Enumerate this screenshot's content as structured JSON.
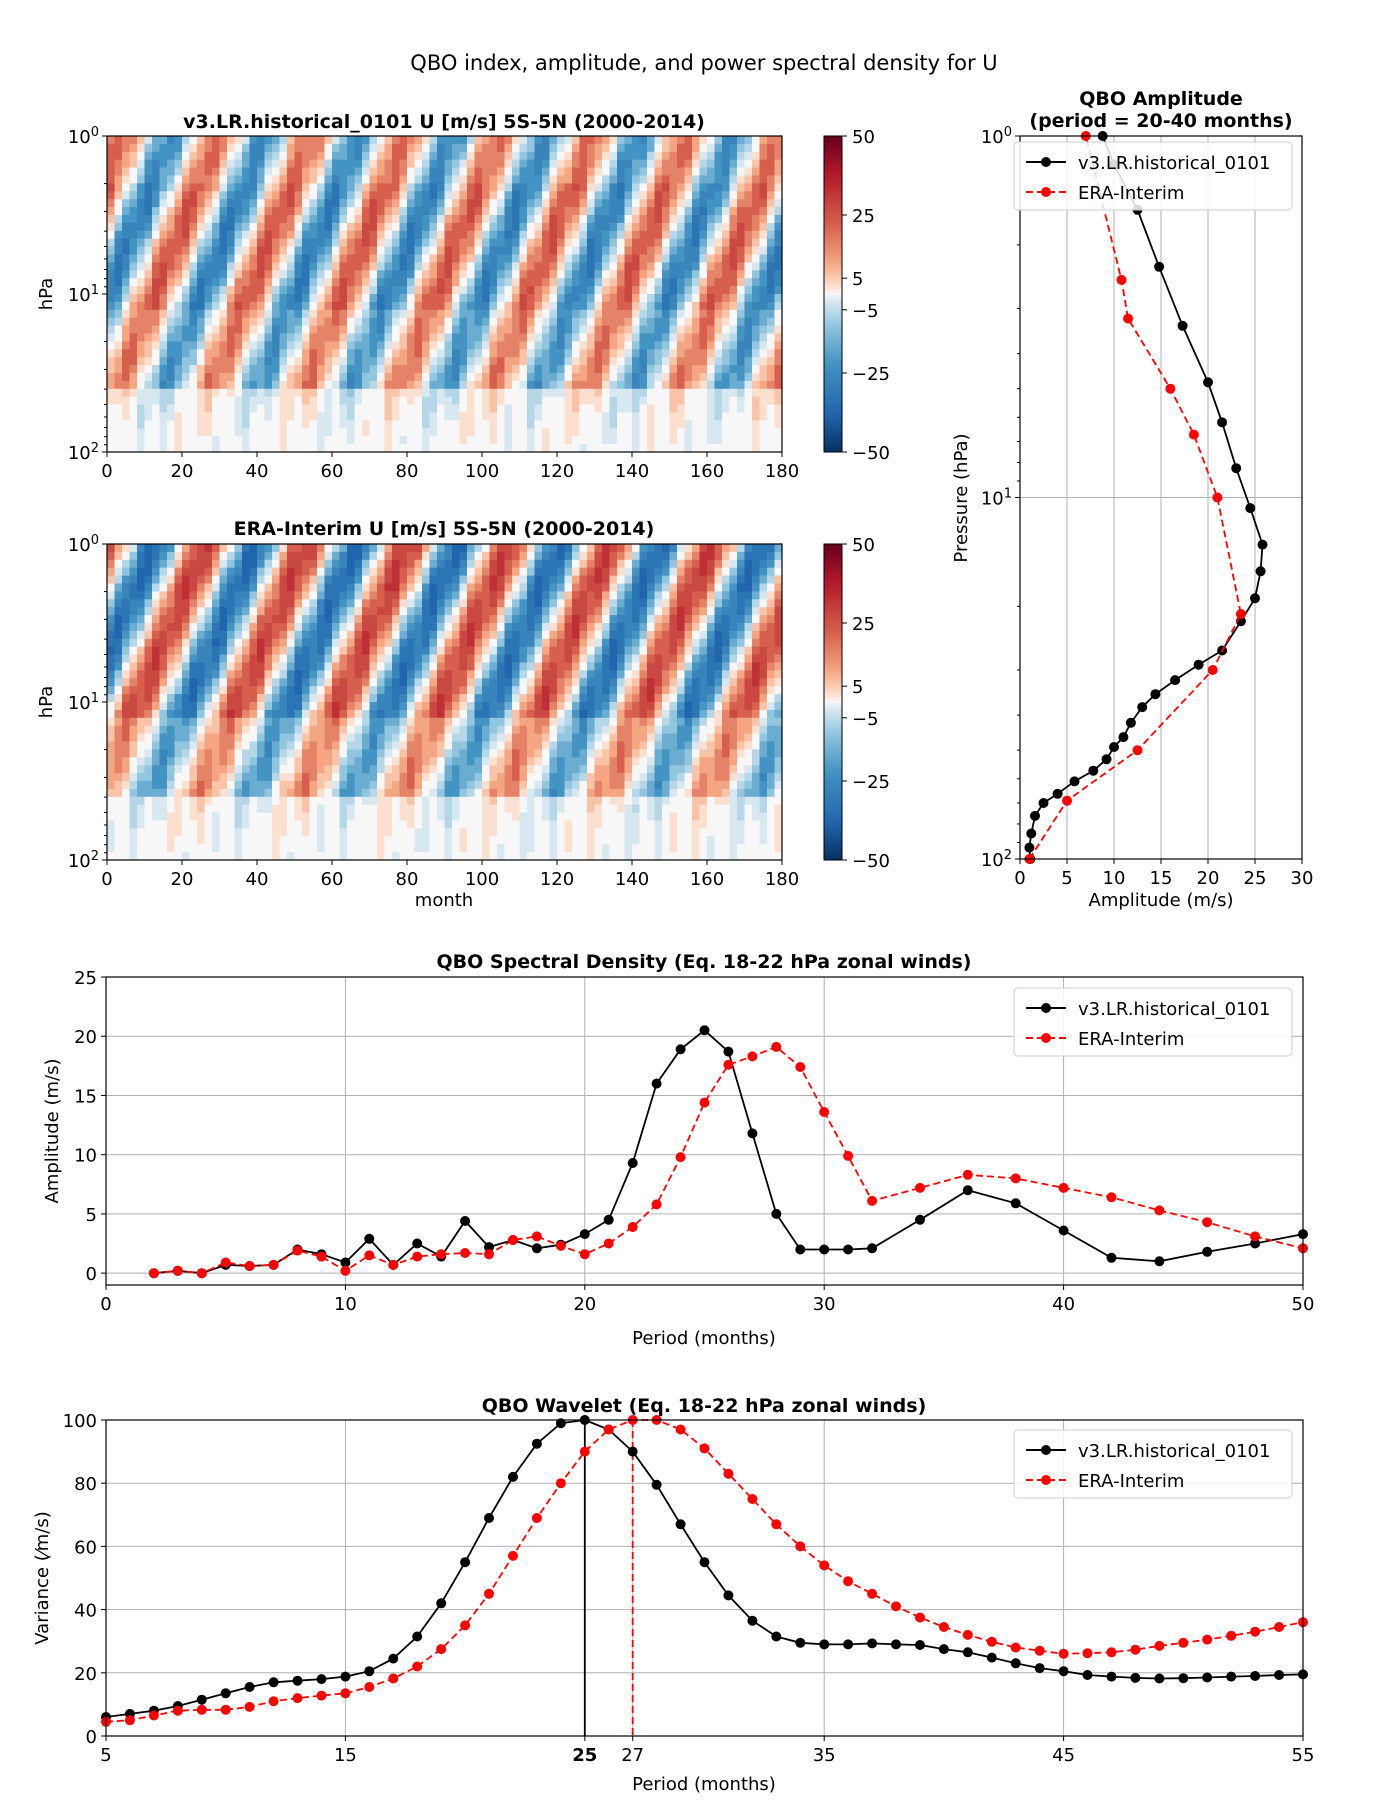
{
  "figure_title": "QBO index, amplitude, and power spectral density for U",
  "colorbar_ticks": [
    "50",
    "25",
    "5",
    "−5",
    "−25",
    "−50"
  ],
  "colorbar_tick_values": [
    50,
    25,
    5,
    -5,
    -25,
    -50
  ],
  "colors": {
    "model": "#000000",
    "reference": "#ff0000",
    "grid": "#b0b0b0",
    "positive": "#d6604d",
    "negative": "#2166ac"
  },
  "chart_data": [
    {
      "type": "heatmap",
      "id": "model-contour",
      "title": "v3.LR.historical_0101 U [m/s] 5S-5N (2000-2014)",
      "ylabel": "hPa",
      "xlabel": "",
      "xlim": [
        0,
        180
      ],
      "x_ticks": [
        "0",
        "20",
        "40",
        "60",
        "80",
        "100",
        "120",
        "140",
        "160",
        "180"
      ],
      "y_ticks": [
        "10^0",
        "10^1",
        "10^2"
      ],
      "ylim_hPa": [
        100,
        1
      ],
      "y_scale": "log",
      "colorbar_range": [
        -50,
        50
      ],
      "colormap": "RdBu_r",
      "qbo_period_months": 25,
      "descent": "downward-propagating alternating easterly and westerly wind regimes"
    },
    {
      "type": "heatmap",
      "id": "reference-contour",
      "title": "ERA-Interim U [m/s] 5S-5N (2000-2014)",
      "ylabel": "hPa",
      "xlabel": "month",
      "xlim": [
        0,
        180
      ],
      "x_ticks": [
        "0",
        "20",
        "40",
        "60",
        "80",
        "100",
        "120",
        "140",
        "160",
        "180"
      ],
      "y_ticks": [
        "10^0",
        "10^1",
        "10^2"
      ],
      "ylim_hPa": [
        100,
        1
      ],
      "y_scale": "log",
      "colorbar_range": [
        -50,
        50
      ],
      "colormap": "RdBu_r",
      "qbo_period_months": 27,
      "descent": "downward-propagating alternating easterly and westerly wind regimes"
    },
    {
      "type": "line",
      "id": "amplitude",
      "title_line1": "QBO Amplitude",
      "title_line2": "(period = 20-40 months)",
      "xlabel": "Amplitude (m/s)",
      "ylabel": "Pressure (hPa)",
      "xlim": [
        0,
        30
      ],
      "ylim": [
        100,
        1
      ],
      "y_scale": "log",
      "x_ticks": [
        "0",
        "5",
        "10",
        "15",
        "20",
        "25",
        "30"
      ],
      "y_ticks": [
        "10^0",
        "10^1",
        "10^2"
      ],
      "legend": "upper-right",
      "series": [
        {
          "name": "v3.LR.historical_0101",
          "style": "solid",
          "color": "#000000",
          "points": [
            [
              1.1,
              100
            ],
            [
              1.0,
              93
            ],
            [
              1.2,
              85
            ],
            [
              1.6,
              76
            ],
            [
              2.5,
              70
            ],
            [
              4.0,
              66
            ],
            [
              5.8,
              61
            ],
            [
              7.8,
              57
            ],
            [
              9.2,
              53
            ],
            [
              10.0,
              49
            ],
            [
              11.0,
              46
            ],
            [
              11.8,
              42
            ],
            [
              13.0,
              38
            ],
            [
              14.4,
              35
            ],
            [
              16.5,
              32
            ],
            [
              19.0,
              29
            ],
            [
              21.5,
              26.5
            ],
            [
              23.5,
              22
            ],
            [
              25.0,
              19
            ],
            [
              25.6,
              16
            ],
            [
              25.8,
              13.5
            ],
            [
              24.5,
              10.7
            ],
            [
              23.0,
              8.3
            ],
            [
              21.5,
              6.2
            ],
            [
              20.0,
              4.8
            ],
            [
              17.3,
              3.35
            ],
            [
              14.8,
              2.3
            ],
            [
              12.5,
              1.6
            ],
            [
              10.0,
              1.2
            ],
            [
              8.8,
              0.99
            ]
          ]
        },
        {
          "name": "ERA-Interim",
          "style": "dashed",
          "color": "#ff0000",
          "points": [
            [
              1.0,
              100
            ],
            [
              5.0,
              69
            ],
            [
              12.5,
              50
            ],
            [
              20.5,
              30
            ],
            [
              23.5,
              21
            ],
            [
              21.0,
              10
            ],
            [
              18.5,
              6.7
            ],
            [
              16.0,
              5.0
            ],
            [
              11.5,
              3.2
            ],
            [
              10.8,
              2.5
            ],
            [
              7.0,
              1.0
            ]
          ]
        }
      ]
    },
    {
      "type": "line",
      "id": "spectral",
      "title": "QBO Spectral Density (Eq. 18-22 hPa zonal winds)",
      "xlabel": "Period (months)",
      "ylabel": "Amplitude (m/s)",
      "xlim": [
        0,
        50
      ],
      "ylim": [
        -1,
        25
      ],
      "x_ticks": [
        0,
        10,
        20,
        30,
        40,
        50
      ],
      "y_ticks": [
        0,
        5,
        10,
        15,
        20,
        25
      ],
      "legend": "upper-right",
      "series": [
        {
          "name": "v3.LR.historical_0101",
          "style": "solid",
          "color": "#000000",
          "points": [
            [
              2,
              0
            ],
            [
              3,
              0.2
            ],
            [
              4,
              0
            ],
            [
              5,
              0.7
            ],
            [
              6,
              0.6
            ],
            [
              7,
              0.7
            ],
            [
              8,
              2
            ],
            [
              9,
              1.6
            ],
            [
              10,
              0.9
            ],
            [
              11,
              2.9
            ],
            [
              12,
              0.7
            ],
            [
              13,
              2.5
            ],
            [
              14,
              1.4
            ],
            [
              15,
              4.4
            ],
            [
              16,
              2.2
            ],
            [
              17,
              2.8
            ],
            [
              18,
              2.1
            ],
            [
              19,
              2.4
            ],
            [
              20,
              3.3
            ],
            [
              21,
              4.5
            ],
            [
              22,
              9.3
            ],
            [
              23,
              16
            ],
            [
              24,
              18.9
            ],
            [
              25,
              20.5
            ],
            [
              26,
              18.7
            ],
            [
              27,
              11.8
            ],
            [
              28,
              5
            ],
            [
              29,
              2
            ],
            [
              30,
              2
            ],
            [
              31,
              2
            ],
            [
              32,
              2.1
            ],
            [
              34,
              4.5
            ],
            [
              36,
              7
            ],
            [
              38,
              5.9
            ],
            [
              40,
              3.6
            ],
            [
              42,
              1.3
            ],
            [
              44,
              1
            ],
            [
              46,
              1.8
            ],
            [
              48,
              2.5
            ],
            [
              50,
              3.3
            ]
          ]
        },
        {
          "name": "ERA-Interim",
          "style": "dashed",
          "color": "#ff0000",
          "points": [
            [
              2,
              0
            ],
            [
              3,
              0.2
            ],
            [
              4,
              0
            ],
            [
              5,
              0.9
            ],
            [
              6,
              0.6
            ],
            [
              7,
              0.7
            ],
            [
              8,
              1.9
            ],
            [
              9,
              1.4
            ],
            [
              10,
              0.2
            ],
            [
              11,
              1.5
            ],
            [
              12,
              0.7
            ],
            [
              13,
              1.4
            ],
            [
              14,
              1.6
            ],
            [
              15,
              1.7
            ],
            [
              16,
              1.6
            ],
            [
              17,
              2.8
            ],
            [
              18,
              3.1
            ],
            [
              19,
              2.3
            ],
            [
              20,
              1.6
            ],
            [
              21,
              2.5
            ],
            [
              22,
              3.9
            ],
            [
              23,
              5.8
            ],
            [
              24,
              9.8
            ],
            [
              25,
              14.4
            ],
            [
              26,
              17.6
            ],
            [
              27,
              18.3
            ],
            [
              28,
              19.1
            ],
            [
              29,
              17.4
            ],
            [
              30,
              13.6
            ],
            [
              31,
              9.9
            ],
            [
              32,
              6.1
            ],
            [
              34,
              7.2
            ],
            [
              36,
              8.3
            ],
            [
              38,
              8
            ],
            [
              40,
              7.2
            ],
            [
              42,
              6.4
            ],
            [
              44,
              5.3
            ],
            [
              46,
              4.3
            ],
            [
              48,
              3.1
            ],
            [
              50,
              2.1
            ]
          ]
        }
      ]
    },
    {
      "type": "line",
      "id": "wavelet",
      "title": "QBO Wavelet (Eq. 18-22 hPa zonal winds)",
      "xlabel": "Period (months)",
      "ylabel": "Variance (⁄m/s)",
      "xlim": [
        5,
        55
      ],
      "ylim": [
        0,
        100
      ],
      "x_ticks": [
        5,
        15,
        25,
        27,
        35,
        45,
        55
      ],
      "bold_ticks": [
        25
      ],
      "y_ticks": [
        0,
        20,
        40,
        60,
        80,
        100
      ],
      "legend": "upper-right",
      "peak_markers": [
        {
          "series": "v3.LR.historical_0101",
          "period": 25,
          "style": "solid"
        },
        {
          "series": "ERA-Interim",
          "period": 27,
          "style": "dashed"
        }
      ],
      "series": [
        {
          "name": "v3.LR.historical_0101",
          "style": "solid",
          "color": "#000000",
          "x": [
            5,
            6,
            7,
            8,
            9,
            10,
            11,
            12,
            13,
            14,
            15,
            16,
            17,
            18,
            19,
            20,
            21,
            22,
            23,
            24,
            25,
            26,
            27,
            28,
            29,
            30,
            31,
            32,
            33,
            34,
            35,
            36,
            37,
            38,
            39,
            40,
            41,
            42,
            43,
            44,
            45,
            46,
            47,
            48,
            49,
            50,
            51,
            52,
            53,
            54,
            55
          ],
          "y": [
            6,
            7,
            8,
            9.5,
            11.5,
            13.5,
            15.5,
            17,
            17.5,
            18,
            18.8,
            20.5,
            24.5,
            31.5,
            42,
            55,
            69,
            82,
            92.5,
            99,
            100,
            97,
            90,
            79.5,
            67,
            55,
            44.5,
            36.5,
            31.5,
            29.5,
            29,
            29,
            29.3,
            29,
            28.8,
            27.5,
            26.5,
            24.8,
            23,
            21.5,
            20.5,
            19.3,
            18.8,
            18.4,
            18.2,
            18.3,
            18.5,
            18.8,
            19,
            19.3,
            19.5
          ]
        },
        {
          "name": "ERA-Interim",
          "style": "dashed",
          "color": "#ff0000",
          "x": [
            5,
            6,
            7,
            8,
            9,
            10,
            11,
            12,
            13,
            14,
            15,
            16,
            17,
            18,
            19,
            20,
            21,
            22,
            23,
            24,
            25,
            26,
            27,
            28,
            29,
            30,
            31,
            32,
            33,
            34,
            35,
            36,
            37,
            38,
            39,
            40,
            41,
            42,
            43,
            44,
            45,
            46,
            47,
            48,
            49,
            50,
            51,
            52,
            53,
            54,
            55
          ],
          "y": [
            4.5,
            5,
            6.5,
            8,
            8.3,
            8.3,
            9.2,
            11,
            12,
            12.8,
            13.5,
            15.5,
            18.2,
            22,
            27.5,
            35,
            45,
            57,
            69,
            80,
            90,
            97,
            100,
            100,
            97,
            91,
            83,
            75,
            67,
            60,
            54,
            49,
            45,
            41,
            37.5,
            34.5,
            32,
            29.8,
            28,
            27,
            26,
            26.2,
            26.5,
            27.3,
            28.5,
            29.5,
            30.5,
            31.7,
            33,
            34.5,
            36
          ]
        }
      ]
    }
  ]
}
